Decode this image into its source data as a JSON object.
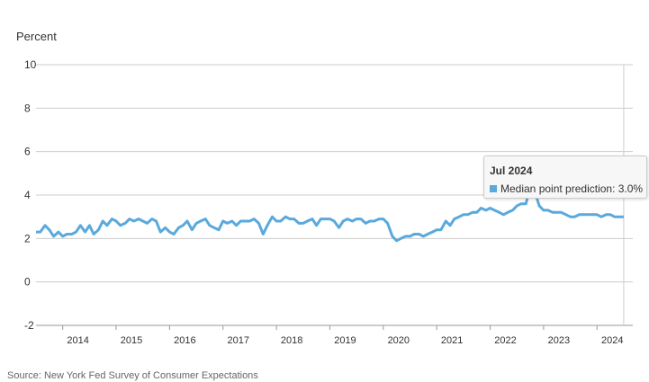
{
  "chart_data": {
    "type": "line",
    "ylabel": "Percent",
    "ylim": [
      -2,
      10
    ],
    "yticks": [
      "10",
      "8",
      "6",
      "4",
      "2",
      "0",
      "-2"
    ],
    "xlim": [
      2013.5,
      2024.67
    ],
    "xticks": [
      "2014",
      "2015",
      "2016",
      "2017",
      "2018",
      "2019",
      "2020",
      "2021",
      "2022",
      "2023",
      "2024"
    ],
    "grid": "horizontal",
    "color": "#5aa9dc",
    "series": [
      {
        "x": [
          2013.5,
          2013.58,
          2013.67,
          2013.75,
          2013.83,
          2013.92,
          2014.0,
          2014.08,
          2014.17,
          2014.25,
          2014.33,
          2014.42,
          2014.5,
          2014.58,
          2014.67,
          2014.75,
          2014.83,
          2014.92,
          2015.0,
          2015.08,
          2015.17,
          2015.25,
          2015.33,
          2015.42,
          2015.5,
          2015.58,
          2015.67,
          2015.75,
          2015.83,
          2015.92,
          2016.0,
          2016.08,
          2016.17,
          2016.25,
          2016.33,
          2016.42,
          2016.5,
          2016.58,
          2016.67,
          2016.75,
          2016.83,
          2016.92,
          2017.0,
          2017.08,
          2017.17,
          2017.25,
          2017.33,
          2017.42,
          2017.5,
          2017.58,
          2017.67,
          2017.75,
          2017.83,
          2017.92,
          2018.0,
          2018.08,
          2018.17,
          2018.25,
          2018.33,
          2018.42,
          2018.5,
          2018.58,
          2018.67,
          2018.75,
          2018.83,
          2018.92,
          2019.0,
          2019.08,
          2019.17,
          2019.25,
          2019.33,
          2019.42,
          2019.5,
          2019.58,
          2019.67,
          2019.75,
          2019.83,
          2019.92,
          2020.0,
          2020.08,
          2020.17,
          2020.25,
          2020.33,
          2020.42,
          2020.5,
          2020.58,
          2020.67,
          2020.75,
          2020.83,
          2020.92,
          2021.0,
          2021.08,
          2021.17,
          2021.25,
          2021.33,
          2021.42,
          2021.5,
          2021.58,
          2021.67,
          2021.75,
          2021.83,
          2021.92,
          2022.0,
          2022.08,
          2022.17,
          2022.25,
          2022.33,
          2022.42,
          2022.5,
          2022.58,
          2022.67,
          2022.75,
          2022.83,
          2022.92,
          2023.0,
          2023.08,
          2023.17,
          2023.25,
          2023.33,
          2023.42,
          2023.5,
          2023.58,
          2023.67,
          2023.75,
          2023.83,
          2023.92,
          2024.0,
          2024.08,
          2024.17,
          2024.25,
          2024.33,
          2024.42,
          2024.5
        ],
        "y": [
          2.3,
          2.3,
          2.6,
          2.4,
          2.1,
          2.3,
          2.1,
          2.2,
          2.2,
          2.3,
          2.6,
          2.3,
          2.6,
          2.2,
          2.4,
          2.8,
          2.6,
          2.9,
          2.8,
          2.6,
          2.7,
          2.9,
          2.8,
          2.9,
          2.8,
          2.7,
          2.9,
          2.8,
          2.3,
          2.5,
          2.3,
          2.2,
          2.5,
          2.6,
          2.8,
          2.4,
          2.7,
          2.8,
          2.9,
          2.6,
          2.5,
          2.4,
          2.8,
          2.7,
          2.8,
          2.6,
          2.8,
          2.8,
          2.8,
          2.9,
          2.7,
          2.2,
          2.6,
          3.0,
          2.8,
          2.8,
          3.0,
          2.9,
          2.9,
          2.7,
          2.7,
          2.8,
          2.9,
          2.6,
          2.9,
          2.9,
          2.9,
          2.8,
          2.5,
          2.8,
          2.9,
          2.8,
          2.9,
          2.9,
          2.7,
          2.8,
          2.8,
          2.9,
          2.9,
          2.7,
          2.1,
          1.9,
          2.0,
          2.1,
          2.1,
          2.2,
          2.2,
          2.1,
          2.2,
          2.3,
          2.4,
          2.4,
          2.8,
          2.6,
          2.9,
          3.0,
          3.1,
          3.1,
          3.2,
          3.2,
          3.4,
          3.3,
          3.4,
          3.3,
          3.2,
          3.1,
          3.2,
          3.3,
          3.5,
          3.6,
          3.6,
          4.4,
          4.2,
          3.5,
          3.3,
          3.3,
          3.2,
          3.2,
          3.2,
          3.1,
          3.0,
          3.0,
          3.1,
          3.1,
          3.1,
          3.1,
          3.1,
          3.0,
          3.1,
          3.1,
          3.0,
          3.0,
          3.0
        ]
      }
    ],
    "tooltip": {
      "date": "Jul 2024",
      "text": "Median point prediction: 3.0%"
    },
    "source": "Source: New York Fed Survey of Consumer Expectations"
  }
}
